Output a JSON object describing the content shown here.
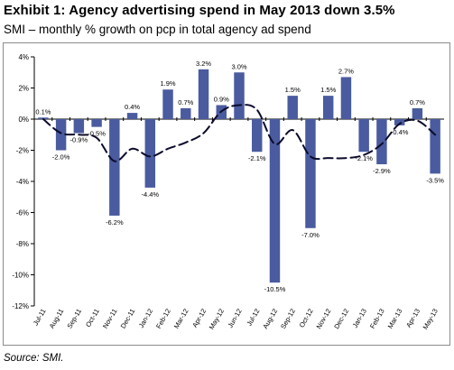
{
  "header": {
    "title": "Exhibit 1: Agency advertising spend in May 2013 down 3.5%",
    "subtitle": "SMI – monthly % growth on pcp in total agency ad spend"
  },
  "footer": {
    "source": "Source: SMI."
  },
  "chart_data": {
    "type": "bar",
    "categories": [
      "Jul-11",
      "Aug-11",
      "Sep-11",
      "Oct-11",
      "Nov-11",
      "Dec-11",
      "Jan-12",
      "Feb-12",
      "Mar-12",
      "Apr-12",
      "May-12",
      "Jun-12",
      "Jul-12",
      "Aug-12",
      "Sep-12",
      "Oct-12",
      "Nov-12",
      "Dec-12",
      "Jan-13",
      "Feb-13",
      "Mar-13",
      "Apr-13",
      "May-13"
    ],
    "series": [
      {
        "type": "bar",
        "values": [
          0.1,
          -2.0,
          -0.9,
          -0.5,
          -6.2,
          0.4,
          -4.4,
          1.9,
          0.7,
          3.2,
          0.9,
          3.0,
          -2.1,
          -10.5,
          1.5,
          -7.0,
          1.5,
          2.7,
          -2.1,
          -2.9,
          -0.4,
          0.7,
          -3.5
        ],
        "labels": [
          "0.1%",
          "-2.0%",
          "-0.9%",
          "-0.5%",
          "-6.2%",
          "0.4%",
          "-4.4%",
          "1.9%",
          "0.7%",
          "3.2%",
          "0.9%",
          "3.0%",
          "-2.1%",
          "-10.5%",
          "1.5%",
          "-7.0%",
          "1.5%",
          "2.7%",
          "-2.1%",
          "-2.9%",
          "-0.4%",
          "0.7%",
          "-3.5%"
        ],
        "color": "#4a5b9f"
      },
      {
        "type": "line",
        "style": "dashed",
        "values": [
          0.0,
          -0.9,
          -1.0,
          -1.2,
          -2.7,
          -1.9,
          -2.4,
          -1.9,
          -1.5,
          -0.9,
          0.5,
          0.9,
          0.6,
          -1.6,
          -0.7,
          -2.4,
          -2.5,
          -2.5,
          -2.3,
          -1.6,
          -0.3,
          -0.1,
          -1.0
        ],
        "color": "#0b0b2c"
      }
    ],
    "ylim": [
      -12,
      4
    ],
    "yticks": [
      -12,
      -10,
      -8,
      -6,
      -4,
      -2,
      0,
      2,
      4
    ],
    "ytick_labels": [
      "-12%",
      "-10%",
      "-8%",
      "-6%",
      "-4%",
      "-2%",
      "0%",
      "2%",
      "4%"
    ],
    "xlabel": "",
    "ylabel": "",
    "grid": false,
    "legend": "none"
  }
}
